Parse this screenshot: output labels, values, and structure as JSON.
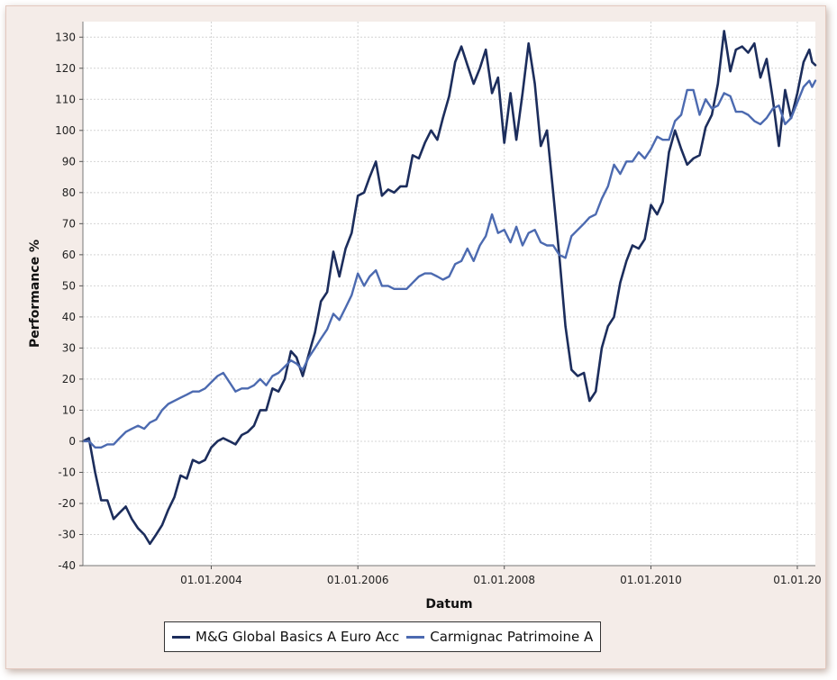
{
  "chart_data": {
    "type": "line",
    "xlabel": "Datum",
    "ylabel": "Performance %",
    "ylim": [
      -40,
      135
    ],
    "xlim": [
      "2002-04-01",
      "2012-03-31"
    ],
    "yticks": [
      -40,
      -30,
      -20,
      -10,
      0,
      10,
      20,
      30,
      40,
      50,
      60,
      70,
      80,
      90,
      100,
      110,
      120,
      130
    ],
    "xticks": [
      {
        "date": "2004-01-01",
        "label": "01.01.2004"
      },
      {
        "date": "2006-01-01",
        "label": "01.01.2006"
      },
      {
        "date": "2008-01-01",
        "label": "01.01.2008"
      },
      {
        "date": "2010-01-01",
        "label": "01.01.2010"
      },
      {
        "date": "2012-01-01",
        "label": "01.01.20"
      }
    ],
    "grid": true,
    "legend_position": "bottom",
    "series": [
      {
        "name": "M&G Global Basics A Euro Acc",
        "color": "#1c2d5c",
        "points": [
          [
            "2002-04-01",
            0
          ],
          [
            "2002-05-01",
            1
          ],
          [
            "2002-06-01",
            -10
          ],
          [
            "2002-07-01",
            -19
          ],
          [
            "2002-08-01",
            -19
          ],
          [
            "2002-09-01",
            -25
          ],
          [
            "2002-10-01",
            -23
          ],
          [
            "2002-11-01",
            -21
          ],
          [
            "2002-12-01",
            -25
          ],
          [
            "2003-01-01",
            -28
          ],
          [
            "2003-02-01",
            -30
          ],
          [
            "2003-03-01",
            -33
          ],
          [
            "2003-04-01",
            -30
          ],
          [
            "2003-05-01",
            -27
          ],
          [
            "2003-06-01",
            -22
          ],
          [
            "2003-07-01",
            -18
          ],
          [
            "2003-08-01",
            -11
          ],
          [
            "2003-09-01",
            -12
          ],
          [
            "2003-10-01",
            -6
          ],
          [
            "2003-11-01",
            -7
          ],
          [
            "2003-12-01",
            -6
          ],
          [
            "2004-01-01",
            -2
          ],
          [
            "2004-02-01",
            0
          ],
          [
            "2004-03-01",
            1
          ],
          [
            "2004-04-01",
            0
          ],
          [
            "2004-05-01",
            -1
          ],
          [
            "2004-06-01",
            2
          ],
          [
            "2004-07-01",
            3
          ],
          [
            "2004-08-01",
            5
          ],
          [
            "2004-09-01",
            10
          ],
          [
            "2004-10-01",
            10
          ],
          [
            "2004-11-01",
            17
          ],
          [
            "2004-12-01",
            16
          ],
          [
            "2005-01-01",
            20
          ],
          [
            "2005-02-01",
            29
          ],
          [
            "2005-03-01",
            27
          ],
          [
            "2005-04-01",
            21
          ],
          [
            "2005-05-01",
            28
          ],
          [
            "2005-06-01",
            35
          ],
          [
            "2005-07-01",
            45
          ],
          [
            "2005-08-01",
            48
          ],
          [
            "2005-09-01",
            61
          ],
          [
            "2005-10-01",
            53
          ],
          [
            "2005-11-01",
            62
          ],
          [
            "2005-12-01",
            67
          ],
          [
            "2006-01-01",
            79
          ],
          [
            "2006-02-01",
            80
          ],
          [
            "2006-03-01",
            85
          ],
          [
            "2006-04-01",
            90
          ],
          [
            "2006-05-01",
            79
          ],
          [
            "2006-06-01",
            81
          ],
          [
            "2006-07-01",
            80
          ],
          [
            "2006-08-01",
            82
          ],
          [
            "2006-09-01",
            82
          ],
          [
            "2006-10-01",
            92
          ],
          [
            "2006-11-01",
            91
          ],
          [
            "2006-12-01",
            96
          ],
          [
            "2007-01-01",
            100
          ],
          [
            "2007-02-01",
            97
          ],
          [
            "2007-03-01",
            104
          ],
          [
            "2007-04-01",
            111
          ],
          [
            "2007-05-01",
            122
          ],
          [
            "2007-06-01",
            127
          ],
          [
            "2007-07-01",
            121
          ],
          [
            "2007-08-01",
            115
          ],
          [
            "2007-09-01",
            120
          ],
          [
            "2007-10-01",
            126
          ],
          [
            "2007-11-01",
            112
          ],
          [
            "2007-12-01",
            117
          ],
          [
            "2008-01-01",
            96
          ],
          [
            "2008-02-01",
            112
          ],
          [
            "2008-03-01",
            97
          ],
          [
            "2008-04-01",
            112
          ],
          [
            "2008-05-01",
            128
          ],
          [
            "2008-06-01",
            115
          ],
          [
            "2008-07-01",
            95
          ],
          [
            "2008-08-01",
            100
          ],
          [
            "2008-09-01",
            80
          ],
          [
            "2008-10-01",
            60
          ],
          [
            "2008-11-01",
            37
          ],
          [
            "2008-12-01",
            23
          ],
          [
            "2009-01-01",
            21
          ],
          [
            "2009-02-01",
            22
          ],
          [
            "2009-03-01",
            13
          ],
          [
            "2009-04-01",
            16
          ],
          [
            "2009-05-01",
            30
          ],
          [
            "2009-06-01",
            37
          ],
          [
            "2009-07-01",
            40
          ],
          [
            "2009-08-01",
            51
          ],
          [
            "2009-09-01",
            58
          ],
          [
            "2009-10-01",
            63
          ],
          [
            "2009-11-01",
            62
          ],
          [
            "2009-12-01",
            65
          ],
          [
            "2010-01-01",
            76
          ],
          [
            "2010-02-01",
            73
          ],
          [
            "2010-03-01",
            77
          ],
          [
            "2010-04-01",
            93
          ],
          [
            "2010-05-01",
            100
          ],
          [
            "2010-06-01",
            94
          ],
          [
            "2010-07-01",
            89
          ],
          [
            "2010-08-01",
            91
          ],
          [
            "2010-09-01",
            92
          ],
          [
            "2010-10-01",
            101
          ],
          [
            "2010-11-01",
            105
          ],
          [
            "2010-12-01",
            115
          ],
          [
            "2011-01-01",
            132
          ],
          [
            "2011-02-01",
            119
          ],
          [
            "2011-03-01",
            126
          ],
          [
            "2011-04-01",
            127
          ],
          [
            "2011-05-01",
            125
          ],
          [
            "2011-06-01",
            128
          ],
          [
            "2011-07-01",
            117
          ],
          [
            "2011-08-01",
            123
          ],
          [
            "2011-09-01",
            110
          ],
          [
            "2011-10-01",
            95
          ],
          [
            "2011-11-01",
            113
          ],
          [
            "2011-12-01",
            104
          ],
          [
            "2012-01-01",
            112
          ],
          [
            "2012-02-01",
            122
          ],
          [
            "2012-03-01",
            126
          ],
          [
            "2012-03-15",
            122
          ],
          [
            "2012-03-31",
            121
          ]
        ]
      },
      {
        "name": "Carmignac Patrimoine A",
        "color": "#4c6ab0",
        "points": [
          [
            "2002-04-01",
            0
          ],
          [
            "2002-05-01",
            0
          ],
          [
            "2002-06-01",
            -2
          ],
          [
            "2002-07-01",
            -2
          ],
          [
            "2002-08-01",
            -1
          ],
          [
            "2002-09-01",
            -1
          ],
          [
            "2002-10-01",
            1
          ],
          [
            "2002-11-01",
            3
          ],
          [
            "2002-12-01",
            4
          ],
          [
            "2003-01-01",
            5
          ],
          [
            "2003-02-01",
            4
          ],
          [
            "2003-03-01",
            6
          ],
          [
            "2003-04-01",
            7
          ],
          [
            "2003-05-01",
            10
          ],
          [
            "2003-06-01",
            12
          ],
          [
            "2003-07-01",
            13
          ],
          [
            "2003-08-01",
            14
          ],
          [
            "2003-09-01",
            15
          ],
          [
            "2003-10-01",
            16
          ],
          [
            "2003-11-01",
            16
          ],
          [
            "2003-12-01",
            17
          ],
          [
            "2004-01-01",
            19
          ],
          [
            "2004-02-01",
            21
          ],
          [
            "2004-03-01",
            22
          ],
          [
            "2004-04-01",
            19
          ],
          [
            "2004-05-01",
            16
          ],
          [
            "2004-06-01",
            17
          ],
          [
            "2004-07-01",
            17
          ],
          [
            "2004-08-01",
            18
          ],
          [
            "2004-09-01",
            20
          ],
          [
            "2004-10-01",
            18
          ],
          [
            "2004-11-01",
            21
          ],
          [
            "2004-12-01",
            22
          ],
          [
            "2005-01-01",
            24
          ],
          [
            "2005-02-01",
            26
          ],
          [
            "2005-03-01",
            25
          ],
          [
            "2005-04-01",
            23
          ],
          [
            "2005-05-01",
            27
          ],
          [
            "2005-06-01",
            30
          ],
          [
            "2005-07-01",
            33
          ],
          [
            "2005-08-01",
            36
          ],
          [
            "2005-09-01",
            41
          ],
          [
            "2005-10-01",
            39
          ],
          [
            "2005-11-01",
            43
          ],
          [
            "2005-12-01",
            47
          ],
          [
            "2006-01-01",
            54
          ],
          [
            "2006-02-01",
            50
          ],
          [
            "2006-03-01",
            53
          ],
          [
            "2006-04-01",
            55
          ],
          [
            "2006-05-01",
            50
          ],
          [
            "2006-06-01",
            50
          ],
          [
            "2006-07-01",
            49
          ],
          [
            "2006-08-01",
            49
          ],
          [
            "2006-09-01",
            49
          ],
          [
            "2006-10-01",
            51
          ],
          [
            "2006-11-01",
            53
          ],
          [
            "2006-12-01",
            54
          ],
          [
            "2007-01-01",
            54
          ],
          [
            "2007-02-01",
            53
          ],
          [
            "2007-03-01",
            52
          ],
          [
            "2007-04-01",
            53
          ],
          [
            "2007-05-01",
            57
          ],
          [
            "2007-06-01",
            58
          ],
          [
            "2007-07-01",
            62
          ],
          [
            "2007-08-01",
            58
          ],
          [
            "2007-09-01",
            63
          ],
          [
            "2007-10-01",
            66
          ],
          [
            "2007-11-01",
            73
          ],
          [
            "2007-12-01",
            67
          ],
          [
            "2008-01-01",
            68
          ],
          [
            "2008-02-01",
            64
          ],
          [
            "2008-03-01",
            69
          ],
          [
            "2008-04-01",
            63
          ],
          [
            "2008-05-01",
            67
          ],
          [
            "2008-06-01",
            68
          ],
          [
            "2008-07-01",
            64
          ],
          [
            "2008-08-01",
            63
          ],
          [
            "2008-09-01",
            63
          ],
          [
            "2008-10-01",
            60
          ],
          [
            "2008-11-01",
            59
          ],
          [
            "2008-12-01",
            66
          ],
          [
            "2009-01-01",
            68
          ],
          [
            "2009-02-01",
            70
          ],
          [
            "2009-03-01",
            72
          ],
          [
            "2009-04-01",
            73
          ],
          [
            "2009-05-01",
            78
          ],
          [
            "2009-06-01",
            82
          ],
          [
            "2009-07-01",
            89
          ],
          [
            "2009-08-01",
            86
          ],
          [
            "2009-09-01",
            90
          ],
          [
            "2009-10-01",
            90
          ],
          [
            "2009-11-01",
            93
          ],
          [
            "2009-12-01",
            91
          ],
          [
            "2010-01-01",
            94
          ],
          [
            "2010-02-01",
            98
          ],
          [
            "2010-03-01",
            97
          ],
          [
            "2010-04-01",
            97
          ],
          [
            "2010-05-01",
            103
          ],
          [
            "2010-06-01",
            105
          ],
          [
            "2010-07-01",
            113
          ],
          [
            "2010-08-01",
            113
          ],
          [
            "2010-09-01",
            105
          ],
          [
            "2010-10-01",
            110
          ],
          [
            "2010-11-01",
            107
          ],
          [
            "2010-12-01",
            108
          ],
          [
            "2011-01-01",
            112
          ],
          [
            "2011-02-01",
            111
          ],
          [
            "2011-03-01",
            106
          ],
          [
            "2011-04-01",
            106
          ],
          [
            "2011-05-01",
            105
          ],
          [
            "2011-06-01",
            103
          ],
          [
            "2011-07-01",
            102
          ],
          [
            "2011-08-01",
            104
          ],
          [
            "2011-09-01",
            107
          ],
          [
            "2011-10-01",
            108
          ],
          [
            "2011-11-01",
            102
          ],
          [
            "2011-12-01",
            104
          ],
          [
            "2012-01-01",
            109
          ],
          [
            "2012-02-01",
            114
          ],
          [
            "2012-03-01",
            116
          ],
          [
            "2012-03-15",
            114
          ],
          [
            "2012-03-31",
            116
          ]
        ]
      }
    ]
  }
}
